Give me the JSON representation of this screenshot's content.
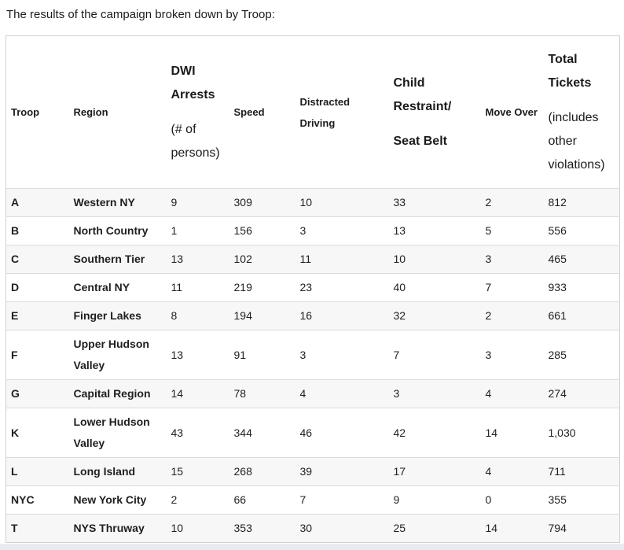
{
  "page": {
    "title": "The results of the campaign broken down by Troop:"
  },
  "colors": {
    "row_stripe": "#f7f7f7",
    "row_border": "#dcdcdc",
    "table_border": "#d0d0d0",
    "text": "#1b1b1b",
    "bottom_strip": "#e8ebf0"
  },
  "table": {
    "header": {
      "troop": "Troop",
      "region": "Region",
      "dwi_main": "DWI Arrests",
      "dwi_sub": "(# of persons)",
      "speed": "Speed",
      "distracted": "Distracted Driving",
      "child_line1": "Child Restraint/",
      "child_line2": "Seat Belt",
      "move": "Move Over",
      "total_main": "Total Tickets",
      "total_sub": "(includes other violations)"
    },
    "rows": [
      {
        "troop": "A",
        "region": "Western NY",
        "dwi": "9",
        "speed": "309",
        "distracted": "10",
        "child": "33",
        "move": "2",
        "total": "812"
      },
      {
        "troop": "B",
        "region": "North Country",
        "dwi": "1",
        "speed": "156",
        "distracted": "3",
        "child": "13",
        "move": "5",
        "total": "556"
      },
      {
        "troop": "C",
        "region": "Southern Tier",
        "dwi": "13",
        "speed": "102",
        "distracted": "11",
        "child": "10",
        "move": "3",
        "total": "465"
      },
      {
        "troop": "D",
        "region": "Central NY",
        "dwi": "11",
        "speed": "219",
        "distracted": "23",
        "child": "40",
        "move": "7",
        "total": "933"
      },
      {
        "troop": "E",
        "region": "Finger Lakes",
        "dwi": "8",
        "speed": "194",
        "distracted": "16",
        "child": "32",
        "move": "2",
        "total": "661"
      },
      {
        "troop": "F",
        "region": "Upper Hudson Valley",
        "dwi": "13",
        "speed": "91",
        "distracted": "3",
        "child": "7",
        "move": "3",
        "total": "285"
      },
      {
        "troop": "G",
        "region": "Capital Region",
        "dwi": "14",
        "speed": "78",
        "distracted": "4",
        "child": "3",
        "move": "4",
        "total": "274"
      },
      {
        "troop": "K",
        "region": "Lower Hudson Valley",
        "dwi": "43",
        "speed": "344",
        "distracted": "46",
        "child": "42",
        "move": "14",
        "total": "1,030"
      },
      {
        "troop": "L",
        "region": "Long Island",
        "dwi": "15",
        "speed": "268",
        "distracted": "39",
        "child": "17",
        "move": "4",
        "total": "711"
      },
      {
        "troop": "NYC",
        "region": "New York City",
        "dwi": "2",
        "speed": "66",
        "distracted": "7",
        "child": "9",
        "move": "0",
        "total": "355"
      },
      {
        "troop": "T",
        "region": "NYS Thruway",
        "dwi": "10",
        "speed": "353",
        "distracted": "30",
        "child": "25",
        "move": "14",
        "total": "794"
      }
    ]
  }
}
